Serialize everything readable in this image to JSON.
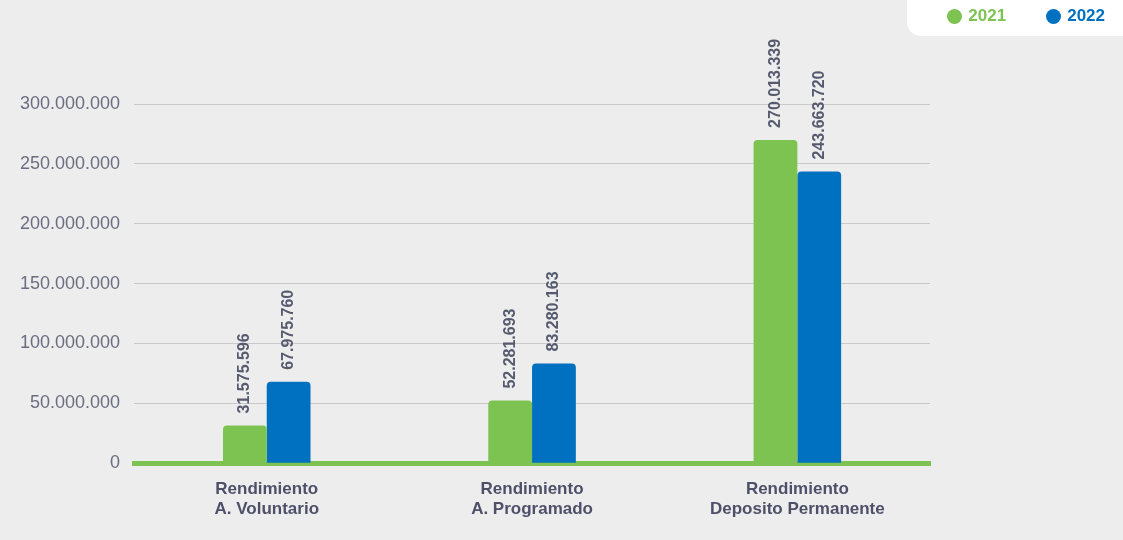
{
  "chart_data": {
    "type": "bar",
    "categories": [
      "Rendimiento A. Voluntario",
      "Rendimiento A. Programado",
      "Rendimiento Deposito Permanente"
    ],
    "series": [
      {
        "name": "2021",
        "color": "#7dc352",
        "values": [
          31575596,
          52281693,
          270013339
        ],
        "value_labels": [
          "31.575.596",
          "52.281.693",
          "270.013.339"
        ]
      },
      {
        "name": "2022",
        "color": "#0070c0",
        "values": [
          67975760,
          83280163,
          243663720
        ],
        "value_labels": [
          "67.975.760",
          "83.280.163",
          "243.663.720"
        ]
      }
    ],
    "ylim": [
      0,
      300000000
    ],
    "yticks": [
      {
        "value": 0,
        "label": "0"
      },
      {
        "value": 50000000,
        "label": "50.000.000"
      },
      {
        "value": 100000000,
        "label": "100.000.000"
      },
      {
        "value": 150000000,
        "label": "150.000.000"
      },
      {
        "value": 200000000,
        "label": "200.000.000"
      },
      {
        "value": 250000000,
        "label": "250.000.000"
      },
      {
        "value": 300000000,
        "label": "300.000.000"
      }
    ],
    "grid": "y",
    "legend": "top right"
  }
}
